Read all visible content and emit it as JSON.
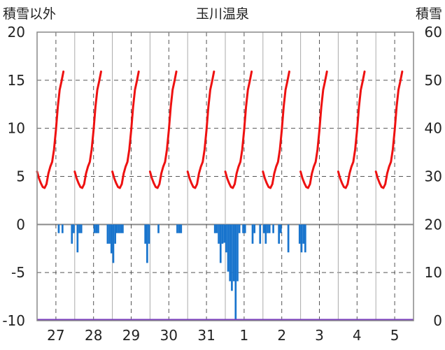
{
  "chart_data": {
    "type": "line",
    "title": "玉川温泉",
    "left_axis": {
      "label": "積雪以外",
      "ticks": [
        20,
        15,
        10,
        5,
        0,
        -5,
        -10
      ],
      "range": [
        -10,
        20
      ]
    },
    "right_axis": {
      "label": "積雪",
      "ticks": [
        60,
        50,
        40,
        30,
        20,
        10,
        0
      ],
      "range": [
        0,
        60
      ]
    },
    "x_labels": [
      "27",
      "28",
      "29",
      "30",
      "31",
      "1",
      "2",
      "3",
      "4",
      "5"
    ],
    "grid": true,
    "colors": {
      "temperature": "#ee1111",
      "precipitation": "#1874cd",
      "snow": "#7b3fbf",
      "grid": "#555555",
      "frame": "#888888"
    },
    "temperature_daily_profile": [
      [
        0.0,
        5.5
      ],
      [
        0.05,
        4.8
      ],
      [
        0.1,
        4.3
      ],
      [
        0.15,
        3.9
      ],
      [
        0.2,
        3.8
      ],
      [
        0.25,
        4.2
      ],
      [
        0.3,
        5.3
      ],
      [
        0.35,
        6.0
      ],
      [
        0.4,
        6.5
      ],
      [
        0.45,
        7.8
      ],
      [
        0.5,
        9.8
      ],
      [
        0.55,
        12.2
      ],
      [
        0.6,
        14.0
      ],
      [
        0.65,
        14.9
      ],
      [
        0.7,
        15.9
      ]
    ],
    "precipitation": [
      [
        26.55,
        -0.9
      ],
      [
        26.65,
        -0.9
      ],
      [
        26.9,
        -2.0
      ],
      [
        26.95,
        -0.9
      ],
      [
        27.05,
        -2.9
      ],
      [
        27.1,
        -0.9
      ],
      [
        27.15,
        -0.9
      ],
      [
        27.5,
        -0.9
      ],
      [
        27.55,
        -0.9
      ],
      [
        27.6,
        -0.9
      ],
      [
        27.85,
        -2.0
      ],
      [
        27.9,
        -2.0
      ],
      [
        27.95,
        -3.0
      ],
      [
        28.0,
        -4.0
      ],
      [
        28.05,
        -2.0
      ],
      [
        28.1,
        -0.9
      ],
      [
        28.15,
        -0.9
      ],
      [
        28.2,
        -0.9
      ],
      [
        28.25,
        -0.9
      ],
      [
        28.85,
        -2.0
      ],
      [
        28.9,
        -4.0
      ],
      [
        28.95,
        -2.0
      ],
      [
        29.2,
        -0.9
      ],
      [
        29.7,
        -0.9
      ],
      [
        29.75,
        -0.9
      ],
      [
        29.8,
        -0.9
      ],
      [
        30.7,
        -0.9
      ],
      [
        30.75,
        -0.9
      ],
      [
        30.8,
        -2.0
      ],
      [
        30.85,
        -4.0
      ],
      [
        30.9,
        -2.0
      ],
      [
        30.95,
        -1.9
      ],
      [
        31.0,
        -2.9
      ],
      [
        31.05,
        -4.9
      ],
      [
        31.1,
        -5.9
      ],
      [
        31.15,
        -6.9
      ],
      [
        31.2,
        -5.9
      ],
      [
        31.25,
        -9.9
      ],
      [
        31.3,
        -5.9
      ],
      [
        31.35,
        -0.9
      ],
      [
        31.45,
        -0.9
      ],
      [
        31.5,
        -0.9
      ],
      [
        31.7,
        -2.0
      ],
      [
        31.75,
        -0.9
      ],
      [
        31.9,
        -2.0
      ],
      [
        32.0,
        -0.9
      ],
      [
        32.05,
        -2.0
      ],
      [
        32.1,
        -0.9
      ],
      [
        32.15,
        -0.9
      ],
      [
        32.25,
        -0.9
      ],
      [
        32.4,
        -2.0
      ],
      [
        32.45,
        -0.9
      ],
      [
        32.65,
        -2.9
      ],
      [
        32.95,
        -2.0
      ],
      [
        33.0,
        -2.9
      ],
      [
        33.05,
        -2.0
      ],
      [
        33.1,
        -2.9
      ]
    ],
    "snow_depth": 0
  }
}
